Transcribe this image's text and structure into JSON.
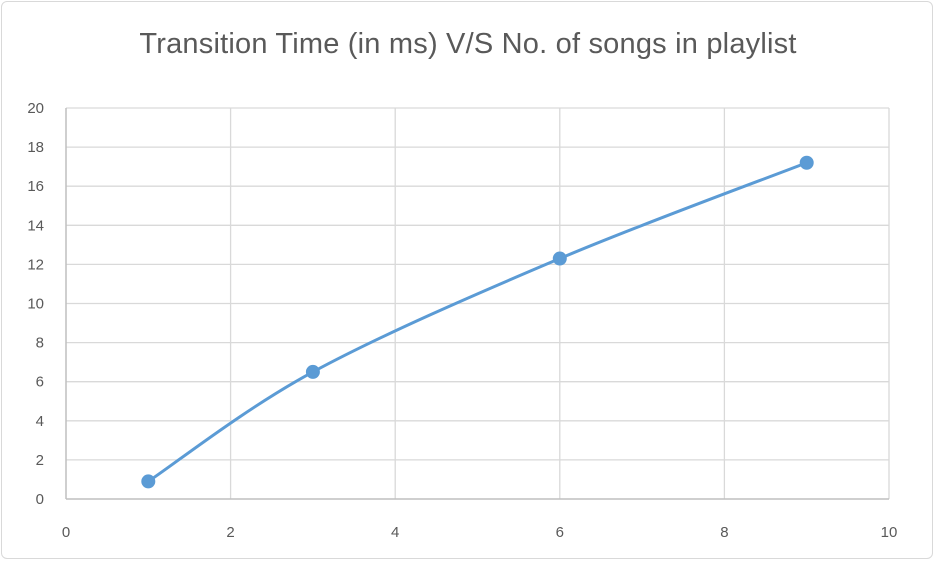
{
  "chart_data": {
    "type": "scatter",
    "title": "Transition Time (in ms) V/S No. of songs in playlist",
    "xlabel": "",
    "ylabel": "",
    "xlim": [
      0,
      10
    ],
    "ylim": [
      0,
      20
    ],
    "xticks": [
      0,
      2,
      4,
      6,
      8,
      10
    ],
    "yticks": [
      0,
      2,
      4,
      6,
      8,
      10,
      12,
      14,
      16,
      18,
      20
    ],
    "grid": true,
    "legend": "none",
    "series": [
      {
        "x": [
          1,
          3,
          6,
          9
        ],
        "y": [
          0.9,
          6.5,
          12.3,
          17.2
        ],
        "color": "#5b9bd5",
        "line": "smooth",
        "markers": true
      }
    ]
  }
}
